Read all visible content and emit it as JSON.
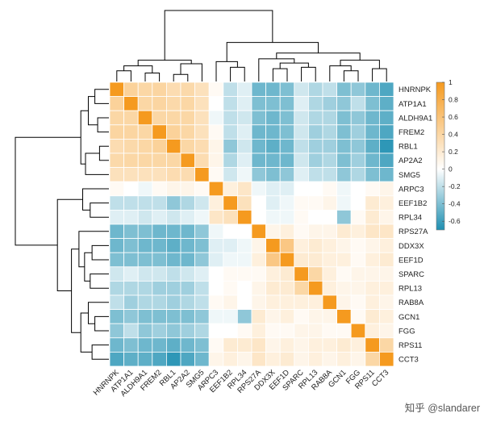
{
  "chart_data": {
    "type": "heatmap",
    "title": "",
    "labels": [
      "HNRNPK",
      "ATP1A1",
      "ALDH9A1",
      "FREM2",
      "RBL1",
      "AP2A2",
      "SMG5",
      "ARPC3",
      "EEF1B2",
      "RPL34",
      "RPS27A",
      "DDX3X",
      "EEF1D",
      "SPARC",
      "RPL13",
      "RAB8A",
      "GCN1",
      "FGG",
      "RPS11",
      "CCT3"
    ],
    "color_range": [
      -0.7,
      1
    ],
    "colorbar": {
      "ticks": [
        1,
        0.8,
        0.6,
        0.4,
        0.2,
        0,
        -0.2,
        -0.4,
        -0.6
      ],
      "tick_labels": [
        "1",
        "0.8",
        "0.6",
        "0.4",
        "0.2",
        "0",
        "-0.2",
        "-0.4",
        "-0.6"
      ],
      "colors": {
        "negative": "#1e8fb1",
        "zero": "#ffffff",
        "positive": "#f59a1f"
      }
    },
    "matrix": [
      [
        1.0,
        0.45,
        0.4,
        0.42,
        0.35,
        0.38,
        0.3,
        0.05,
        -0.2,
        -0.1,
        -0.45,
        -0.45,
        -0.4,
        -0.15,
        -0.25,
        -0.2,
        -0.4,
        -0.35,
        -0.45,
        -0.55
      ],
      [
        0.45,
        1.0,
        0.4,
        0.42,
        0.38,
        0.4,
        0.3,
        0.0,
        -0.2,
        -0.1,
        -0.4,
        -0.4,
        -0.4,
        -0.1,
        -0.25,
        -0.3,
        -0.35,
        -0.2,
        -0.4,
        -0.5
      ],
      [
        0.4,
        0.4,
        1.0,
        0.4,
        0.4,
        0.4,
        0.3,
        -0.05,
        -0.2,
        -0.15,
        -0.4,
        -0.45,
        -0.4,
        -0.15,
        -0.25,
        -0.25,
        -0.4,
        -0.35,
        -0.45,
        -0.5
      ],
      [
        0.42,
        0.42,
        0.4,
        1.0,
        0.45,
        0.4,
        0.3,
        0.05,
        -0.2,
        -0.1,
        -0.45,
        -0.45,
        -0.4,
        -0.15,
        -0.3,
        -0.25,
        -0.4,
        -0.3,
        -0.45,
        -0.55
      ],
      [
        0.35,
        0.38,
        0.4,
        0.45,
        1.0,
        0.4,
        0.35,
        0.1,
        -0.35,
        -0.15,
        -0.45,
        -0.5,
        -0.45,
        -0.2,
        -0.3,
        -0.3,
        -0.4,
        -0.35,
        -0.5,
        -0.65
      ],
      [
        0.38,
        0.4,
        0.4,
        0.4,
        0.4,
        1.0,
        0.35,
        0.1,
        -0.25,
        -0.1,
        -0.45,
        -0.45,
        -0.45,
        -0.15,
        -0.3,
        -0.25,
        -0.4,
        -0.3,
        -0.45,
        -0.55
      ],
      [
        0.3,
        0.3,
        0.3,
        0.3,
        0.35,
        0.35,
        1.0,
        0.05,
        -0.15,
        -0.05,
        -0.35,
        -0.4,
        -0.35,
        -0.1,
        -0.2,
        -0.2,
        -0.35,
        -0.25,
        -0.4,
        -0.45
      ],
      [
        0.05,
        0.0,
        -0.05,
        0.05,
        0.1,
        0.1,
        0.05,
        1.0,
        0.15,
        0.25,
        -0.05,
        -0.1,
        -0.1,
        0.0,
        0.0,
        0.05,
        -0.05,
        0.0,
        0.05,
        0.1
      ],
      [
        -0.2,
        -0.2,
        -0.2,
        -0.2,
        -0.35,
        -0.25,
        -0.15,
        0.15,
        1.0,
        0.3,
        0.0,
        -0.1,
        -0.05,
        0.05,
        0.05,
        0.1,
        -0.05,
        0.0,
        0.2,
        0.15
      ],
      [
        -0.1,
        -0.1,
        -0.15,
        -0.1,
        -0.15,
        -0.1,
        -0.05,
        0.25,
        0.3,
        1.0,
        0.0,
        -0.05,
        -0.05,
        0.05,
        0.0,
        0.0,
        -0.35,
        0.05,
        0.2,
        0.1
      ],
      [
        -0.45,
        -0.4,
        -0.4,
        -0.45,
        -0.45,
        -0.45,
        -0.35,
        -0.05,
        0.0,
        0.0,
        1.0,
        0.1,
        0.15,
        0.05,
        0.1,
        0.1,
        0.2,
        0.15,
        0.25,
        0.25
      ],
      [
        -0.45,
        -0.4,
        -0.45,
        -0.45,
        -0.5,
        -0.45,
        -0.4,
        -0.1,
        -0.1,
        -0.05,
        0.1,
        1.0,
        0.55,
        0.15,
        0.2,
        0.15,
        0.1,
        0.05,
        0.1,
        0.15
      ],
      [
        -0.4,
        -0.4,
        -0.4,
        -0.4,
        -0.45,
        -0.45,
        -0.35,
        -0.1,
        -0.05,
        -0.05,
        0.15,
        0.55,
        1.0,
        0.2,
        0.2,
        0.15,
        0.15,
        0.05,
        0.15,
        0.2
      ],
      [
        -0.15,
        -0.1,
        -0.15,
        -0.15,
        -0.2,
        -0.15,
        -0.1,
        0.0,
        0.05,
        0.05,
        0.05,
        0.15,
        0.2,
        1.0,
        0.4,
        0.15,
        0.05,
        0.1,
        0.1,
        0.1
      ],
      [
        -0.25,
        -0.25,
        -0.25,
        -0.3,
        -0.3,
        -0.3,
        -0.2,
        0.0,
        0.05,
        0.0,
        0.1,
        0.2,
        0.2,
        0.4,
        1.0,
        0.15,
        0.1,
        0.1,
        0.15,
        0.15
      ],
      [
        -0.2,
        -0.3,
        -0.25,
        -0.25,
        -0.3,
        -0.25,
        -0.2,
        0.05,
        0.1,
        0.0,
        0.1,
        0.15,
        0.15,
        0.15,
        0.15,
        1.0,
        0.1,
        0.05,
        0.15,
        0.1
      ],
      [
        -0.4,
        -0.35,
        -0.4,
        -0.4,
        -0.4,
        -0.4,
        -0.35,
        -0.05,
        -0.05,
        -0.35,
        0.2,
        0.1,
        0.15,
        0.05,
        0.1,
        0.1,
        1.0,
        0.05,
        0.2,
        0.15
      ],
      [
        -0.35,
        -0.2,
        -0.35,
        -0.3,
        -0.35,
        -0.3,
        -0.25,
        0.0,
        0.0,
        0.05,
        0.15,
        0.05,
        0.05,
        0.1,
        0.1,
        0.05,
        0.05,
        1.0,
        0.15,
        0.1
      ],
      [
        -0.45,
        -0.4,
        -0.45,
        -0.45,
        -0.5,
        -0.45,
        -0.4,
        0.05,
        0.2,
        0.2,
        0.25,
        0.1,
        0.15,
        0.1,
        0.15,
        0.15,
        0.2,
        0.15,
        1.0,
        0.4
      ],
      [
        -0.55,
        -0.5,
        -0.5,
        -0.55,
        -0.65,
        -0.55,
        -0.45,
        0.1,
        0.15,
        0.1,
        0.25,
        0.15,
        0.2,
        0.1,
        0.15,
        0.1,
        0.15,
        0.1,
        0.4,
        1.0
      ]
    ],
    "dendrogram_groups": {
      "left_cluster": [
        "HNRNPK",
        "ATP1A1",
        "ALDH9A1",
        "FREM2",
        "RBL1",
        "AP2A2",
        "SMG5"
      ],
      "right_cluster": [
        "ARPC3",
        "EEF1B2",
        "RPL34",
        "RPS27A",
        "DDX3X",
        "EEF1D",
        "SPARC",
        "RPL13",
        "RAB8A",
        "GCN1",
        "FGG",
        "RPS11",
        "CCT3"
      ]
    }
  },
  "watermark": "知乎 @slandarer"
}
